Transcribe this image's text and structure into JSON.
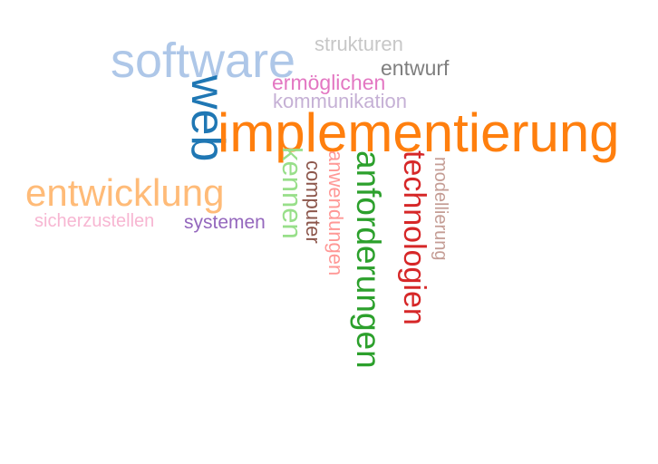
{
  "cloud": {
    "words": [
      {
        "text": "software",
        "color": "#aec7e8",
        "orientation": "horizontal"
      },
      {
        "text": "strukturen",
        "color": "#c7c7c7",
        "orientation": "horizontal"
      },
      {
        "text": "entwurf",
        "color": "#7f7f7f",
        "orientation": "horizontal"
      },
      {
        "text": "ermöglichen",
        "color": "#e377c2",
        "orientation": "horizontal"
      },
      {
        "text": "kommunikation",
        "color": "#c5b0d5",
        "orientation": "horizontal"
      },
      {
        "text": "web",
        "color": "#1f77b4",
        "orientation": "vertical"
      },
      {
        "text": "implementierung",
        "color": "#ff7f0e",
        "orientation": "horizontal"
      },
      {
        "text": "entwicklung",
        "color": "#ffbb78",
        "orientation": "horizontal"
      },
      {
        "text": "sicherzustellen",
        "color": "#f7b6d2",
        "orientation": "horizontal"
      },
      {
        "text": "systemen",
        "color": "#9467bd",
        "orientation": "horizontal"
      },
      {
        "text": "kennen",
        "color": "#98df8a",
        "orientation": "vertical"
      },
      {
        "text": "computer",
        "color": "#8c564b",
        "orientation": "vertical"
      },
      {
        "text": "anwendungen",
        "color": "#ff9896",
        "orientation": "vertical"
      },
      {
        "text": "anforderungen",
        "color": "#2ca02c",
        "orientation": "vertical"
      },
      {
        "text": "technologien",
        "color": "#d62728",
        "orientation": "vertical"
      },
      {
        "text": "modellierung",
        "color": "#c49c94",
        "orientation": "vertical"
      }
    ]
  }
}
